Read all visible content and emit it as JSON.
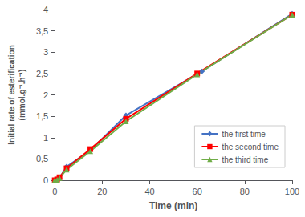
{
  "chart_data": {
    "type": "line",
    "xlabel": "Time (min)",
    "ylabel": "Initial rate of esterification\n(mmol.g⁻¹.h⁻¹)",
    "xlim": [
      0,
      100
    ],
    "ylim": [
      0,
      4
    ],
    "xticks": [
      0,
      20,
      40,
      60,
      80,
      100
    ],
    "yticks": [
      0,
      {
        "value": 0.5,
        "label": "0,5"
      },
      1,
      {
        "value": 1.5,
        "label": "1,5"
      },
      2,
      {
        "value": 2.5,
        "label": "2,5"
      },
      3,
      {
        "value": 3.5,
        "label": "3,5"
      },
      4
    ],
    "grid": false,
    "legend": "lower right",
    "series": [
      {
        "name": "the first time",
        "color": "#4472c4",
        "marker": "diamond",
        "x": [
          0,
          1,
          2,
          5,
          15,
          30,
          62,
          100
        ],
        "values": [
          0,
          0.02,
          0.05,
          0.32,
          0.7,
          1.52,
          2.55,
          3.9
        ]
      },
      {
        "name": "the second time",
        "color": "#ff0000",
        "marker": "square",
        "x": [
          0,
          1,
          2,
          5,
          15,
          30,
          60,
          100
        ],
        "values": [
          0,
          0.02,
          0.07,
          0.28,
          0.73,
          1.44,
          2.5,
          3.88
        ]
      },
      {
        "name": "the third time",
        "color": "#70ad47",
        "marker": "triangle",
        "x": [
          0,
          1,
          2,
          5,
          15,
          30,
          60,
          100
        ],
        "values": [
          0,
          0.01,
          0.05,
          0.25,
          0.68,
          1.38,
          2.48,
          3.88
        ]
      }
    ]
  }
}
